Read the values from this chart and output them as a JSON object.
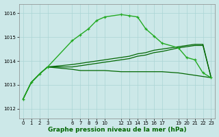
{
  "title": "Graphe pression niveau de la mer (hPa)",
  "background_color": "#cce8e8",
  "grid_color": "#aad4d4",
  "line_color_main": "#006600",
  "line_color_light": "#22aa22",
  "xlim": [
    -0.5,
    23.5
  ],
  "ylim": [
    1011.6,
    1016.4
  ],
  "yticks": [
    1012,
    1013,
    1014,
    1015,
    1016
  ],
  "xticks": [
    0,
    1,
    2,
    3,
    6,
    7,
    8,
    9,
    10,
    12,
    13,
    14,
    15,
    16,
    17,
    19,
    20,
    21,
    22,
    23
  ],
  "hours": [
    0,
    1,
    2,
    3,
    6,
    7,
    8,
    9,
    10,
    12,
    13,
    14,
    15,
    16,
    17,
    19,
    20,
    21,
    22,
    23
  ],
  "line_peaked": [
    1012.4,
    1013.1,
    1013.45,
    1013.75,
    1014.85,
    1015.1,
    1015.35,
    1015.7,
    1015.85,
    1015.95,
    1015.9,
    1015.85,
    1015.35,
    1015.05,
    1014.75,
    1014.55,
    1014.15,
    1014.05,
    1013.5,
    1013.3
  ],
  "line_flat": [
    1012.4,
    1013.1,
    1013.45,
    1013.75,
    1013.65,
    1013.6,
    1013.6,
    1013.6,
    1013.6,
    1013.55,
    1013.55,
    1013.55,
    1013.55,
    1013.55,
    1013.55,
    1013.5,
    1013.45,
    1013.4,
    1013.35,
    1013.3
  ],
  "line_diag1": [
    1012.4,
    1013.1,
    1013.45,
    1013.75,
    1013.75,
    1013.8,
    1013.85,
    1013.9,
    1013.95,
    1014.05,
    1014.1,
    1014.2,
    1014.25,
    1014.35,
    1014.4,
    1014.55,
    1014.6,
    1014.65,
    1014.65,
    1013.3
  ],
  "line_diag2": [
    1012.4,
    1013.1,
    1013.45,
    1013.75,
    1013.85,
    1013.9,
    1013.95,
    1014.0,
    1014.05,
    1014.15,
    1014.2,
    1014.3,
    1014.35,
    1014.45,
    1014.5,
    1014.6,
    1014.65,
    1014.7,
    1014.7,
    1013.3
  ]
}
